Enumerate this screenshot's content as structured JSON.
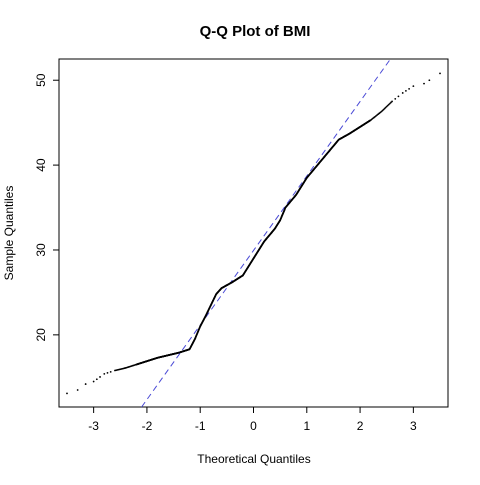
{
  "chart_data": {
    "type": "scatter",
    "title": "Q-Q Plot of BMI",
    "xlabel": "Theoretical Quantiles",
    "ylabel": "Sample Quantiles",
    "xlim": [
      -3.65,
      3.65
    ],
    "ylim": [
      11.5,
      52.5
    ],
    "xticks": [
      -3,
      -2,
      -1,
      0,
      1,
      2,
      3
    ],
    "yticks": [
      20,
      30,
      40,
      50
    ],
    "grid": false,
    "legend": "none",
    "point_color": "#000000",
    "reference_line": {
      "style": "dashed",
      "color": "#4a4ad6",
      "points": [
        [
          -2.1,
          11.5
        ],
        [
          2.57,
          52.5
        ]
      ]
    },
    "curve": [
      [
        -3.5,
        13.1
      ],
      [
        -3.3,
        13.5
      ],
      [
        -3.15,
        14.2
      ],
      [
        -3.0,
        14.5
      ],
      [
        -2.8,
        15.4
      ],
      [
        -2.6,
        15.8
      ],
      [
        -2.4,
        16.1
      ],
      [
        -2.2,
        16.5
      ],
      [
        -2.0,
        16.9
      ],
      [
        -1.8,
        17.3
      ],
      [
        -1.6,
        17.6
      ],
      [
        -1.4,
        17.9
      ],
      [
        -1.2,
        18.3
      ],
      [
        -1.1,
        19.5
      ],
      [
        -1.0,
        21.0
      ],
      [
        -0.9,
        22.2
      ],
      [
        -0.8,
        23.5
      ],
      [
        -0.7,
        24.8
      ],
      [
        -0.6,
        25.5
      ],
      [
        -0.4,
        26.2
      ],
      [
        -0.2,
        27.0
      ],
      [
        0.0,
        29.0
      ],
      [
        0.2,
        31.0
      ],
      [
        0.4,
        32.5
      ],
      [
        0.5,
        33.5
      ],
      [
        0.6,
        35.0
      ],
      [
        0.8,
        36.5
      ],
      [
        1.0,
        38.5
      ],
      [
        1.2,
        40.0
      ],
      [
        1.4,
        41.5
      ],
      [
        1.6,
        43.0
      ],
      [
        1.8,
        43.7
      ],
      [
        2.0,
        44.5
      ],
      [
        2.2,
        45.3
      ],
      [
        2.4,
        46.3
      ],
      [
        2.6,
        47.5
      ],
      [
        2.8,
        48.5
      ],
      [
        3.0,
        49.3
      ],
      [
        3.2,
        49.6
      ],
      [
        3.3,
        50.0
      ],
      [
        3.5,
        50.8
      ]
    ]
  }
}
